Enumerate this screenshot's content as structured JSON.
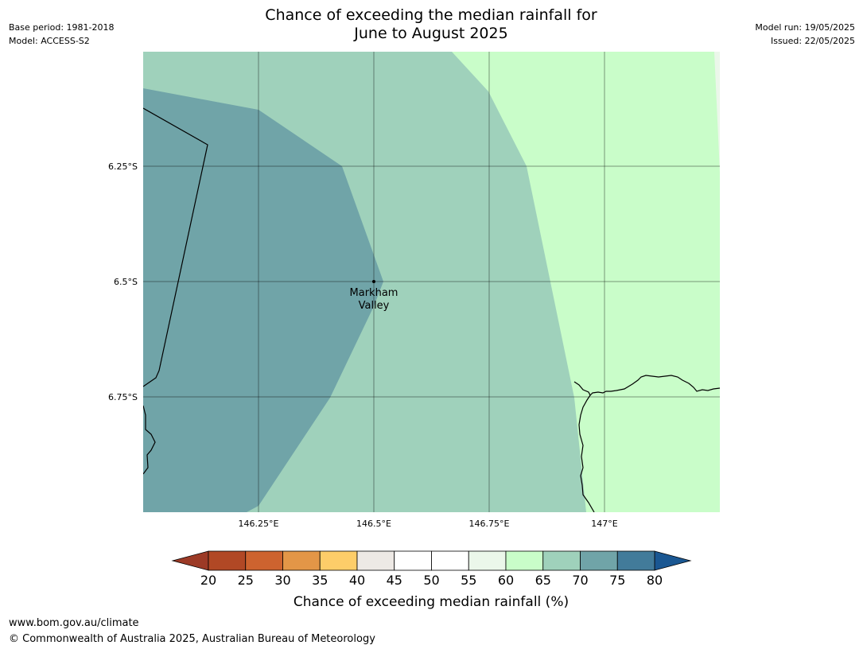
{
  "header": {
    "base_period": "Base period: 1981-2018",
    "model": "Model: ACCESS-S2",
    "title_line1": "Chance of exceeding the median rainfall for",
    "title_line2": "June to August 2025",
    "model_run": "Model run: 19/05/2025",
    "issued": "Issued: 22/05/2025"
  },
  "map": {
    "lat_labels": [
      "6.25°S",
      "6.5°S",
      "6.75°S"
    ],
    "lon_labels": [
      "146.25°E",
      "146.5°E",
      "146.75°E",
      "147°E"
    ],
    "place": {
      "name_line1": "Markham",
      "name_line2": "Valley"
    },
    "region_colors": {
      "band_65_70": "#9fd1bb",
      "band_70_75": "#70a4a8",
      "band_60_65": "#c9fdc9",
      "band_55_60": "#ebf7ea"
    }
  },
  "colorbar": {
    "title": "Chance of exceeding median rainfall (%)",
    "ticks": [
      "20",
      "25",
      "30",
      "35",
      "40",
      "45",
      "50",
      "55",
      "60",
      "65",
      "70",
      "75",
      "80"
    ],
    "colors": [
      "#b14825",
      "#cd632f",
      "#e39647",
      "#fdcd69",
      "#ede9e5",
      "#ffffff",
      "#ffffff",
      "#ebf7ea",
      "#c9fdc9",
      "#9fd1bb",
      "#70a4a8",
      "#427b9a"
    ],
    "under_color": "#9c3a26",
    "over_color": "#1a5792"
  },
  "footer": {
    "url": "www.bom.gov.au/climate",
    "copyright": "© Commonwealth of Australia 2025, Australian Bureau of Meteorology"
  }
}
